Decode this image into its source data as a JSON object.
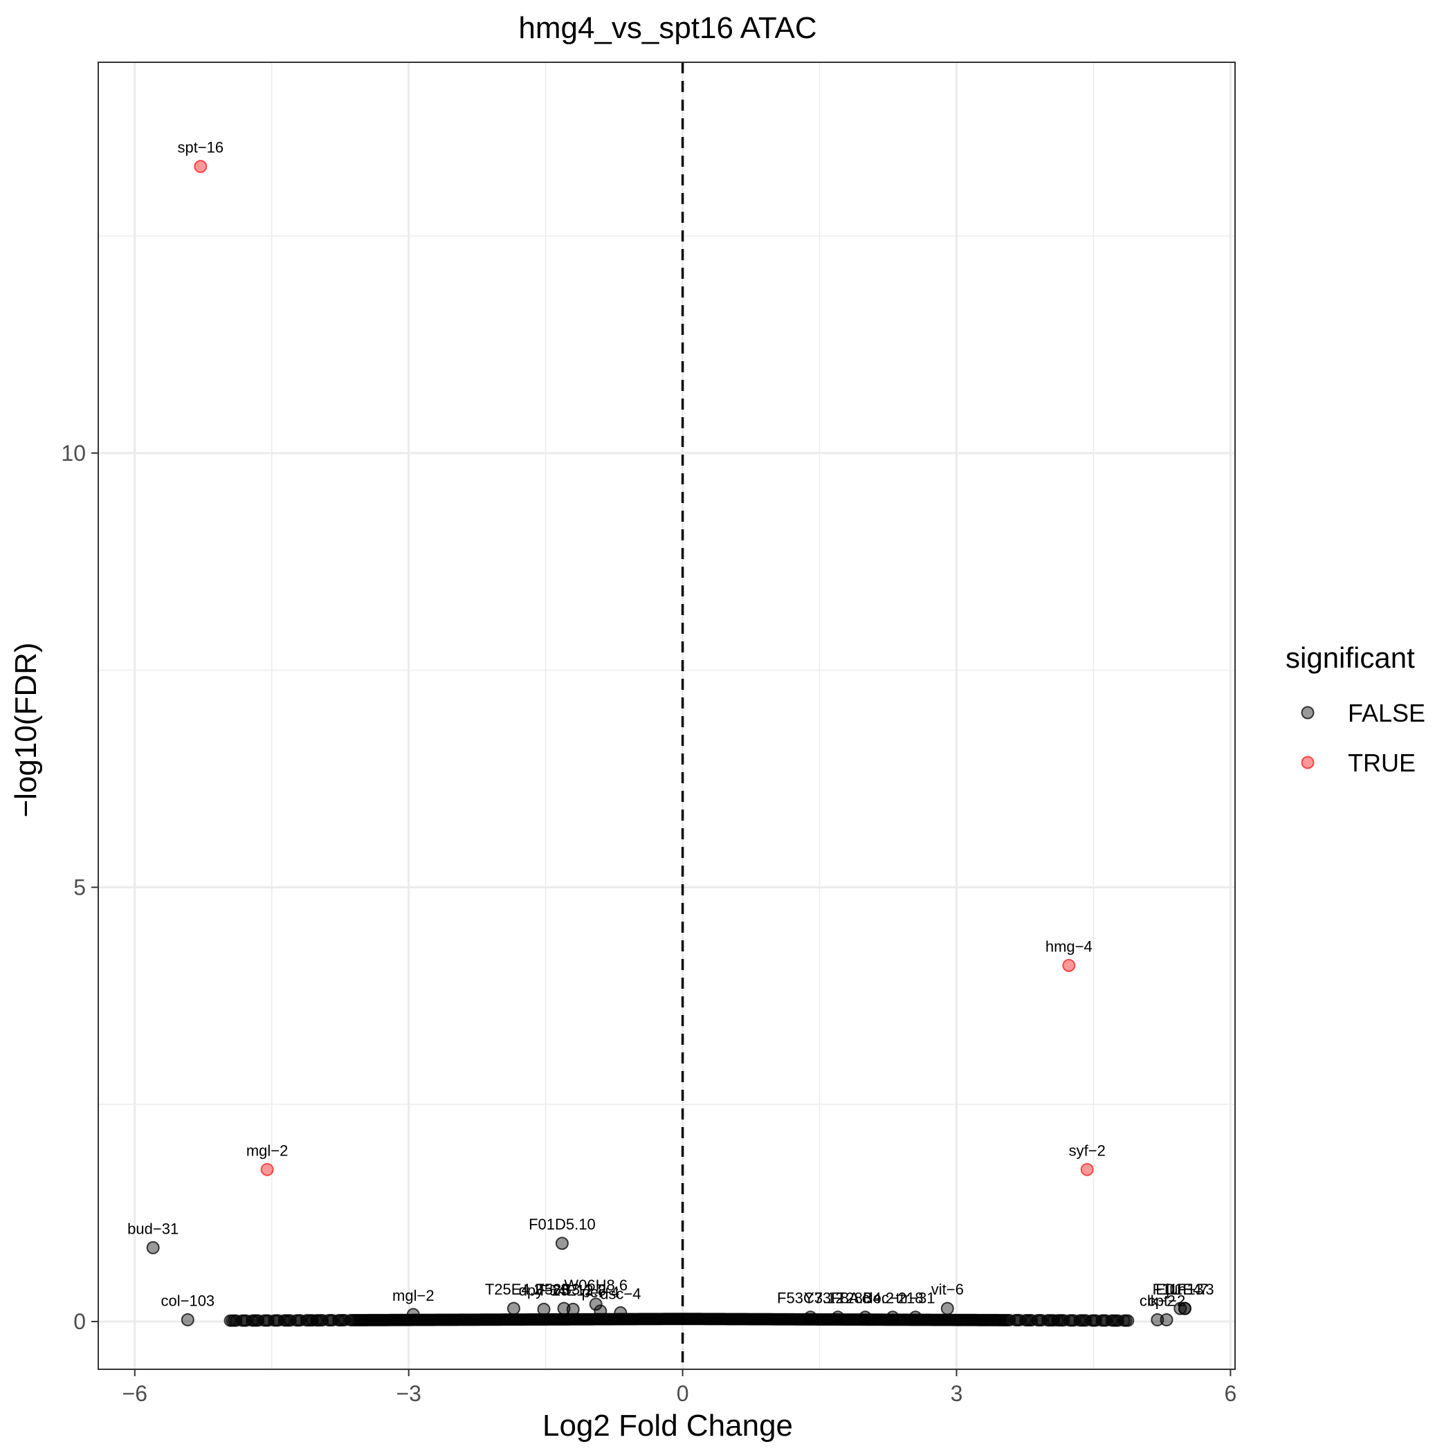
{
  "chart_data": {
    "type": "scatter",
    "title": "hmg4_vs_spt16 ATAC",
    "xlabel": "Log2 Fold Change",
    "ylabel": "−log10(FDR)",
    "xlim": [
      -6.4,
      6.05
    ],
    "ylim": [
      -0.55,
      14.5
    ],
    "x_ticks": [
      -6,
      -3,
      0,
      3,
      6
    ],
    "x_tick_labels": [
      "−6",
      "−3",
      "0",
      "3",
      "6"
    ],
    "y_ticks": [
      0,
      5,
      10
    ],
    "y_tick_labels": [
      "0",
      "5",
      "10"
    ],
    "grid": true,
    "vline": 0,
    "legend": {
      "title": "significant",
      "position": "right",
      "entries": [
        {
          "label": "FALSE",
          "color": "#000000"
        },
        {
          "label": "TRUE",
          "color": "#ff0000"
        }
      ]
    },
    "colors": {
      "FALSE": "#000000",
      "TRUE": "#ff0000"
    },
    "series": [
      {
        "name": "TRUE",
        "points": [
          {
            "x": -5.28,
            "y": 13.3,
            "label": "spt−16"
          },
          {
            "x": 4.23,
            "y": 4.1,
            "label": "hmg−4"
          },
          {
            "x": -4.55,
            "y": 1.75,
            "label": "mgl−2"
          },
          {
            "x": 4.43,
            "y": 1.75,
            "label": "syf−2"
          }
        ]
      },
      {
        "name": "FALSE",
        "points": [
          {
            "x": -5.8,
            "y": 0.85,
            "label": "bud−31"
          },
          {
            "x": -1.32,
            "y": 0.9,
            "label": "F01D5.10"
          },
          {
            "x": -5.42,
            "y": 0.02,
            "label": "col−103"
          },
          {
            "x": -2.95,
            "y": 0.08,
            "label": "mgl−2"
          },
          {
            "x": -1.85,
            "y": 0.15,
            "label": "T25E4.2"
          },
          {
            "x": -1.52,
            "y": 0.14,
            "label": "dpy−25"
          },
          {
            "x": -1.3,
            "y": 0.15,
            "label": "F58B3.1"
          },
          {
            "x": -1.2,
            "y": 0.14,
            "label": "F54E12.8"
          },
          {
            "x": -0.95,
            "y": 0.2,
            "label": "W06H8.6"
          },
          {
            "x": -0.68,
            "y": 0.1,
            "label": "dsc−4"
          },
          {
            "x": -0.9,
            "y": 0.12,
            "label": "pei−4"
          },
          {
            "x": 2.9,
            "y": 0.15,
            "label": "vit−6"
          },
          {
            "x": 1.4,
            "y": 0.05,
            "label": "F53C3.12"
          },
          {
            "x": 1.7,
            "y": 0.05,
            "label": "Y73F8A.3"
          },
          {
            "x": 2.0,
            "y": 0.05,
            "label": "T28B4.2"
          },
          {
            "x": 2.3,
            "y": 0.05,
            "label": "clec−218"
          },
          {
            "x": 2.55,
            "y": 0.05,
            "label": "ttr−31"
          },
          {
            "x": 5.2,
            "y": 0.02,
            "label": "clk−2"
          },
          {
            "x": 5.3,
            "y": 0.02,
            "label": "cpt−2"
          },
          {
            "x": 5.45,
            "y": 0.15,
            "label": "F11F1.7"
          },
          {
            "x": 5.5,
            "y": 0.15,
            "label": "jun−3"
          },
          {
            "x": 5.5,
            "y": 0.15,
            "label": "E01E4.3"
          }
        ]
      }
    ]
  }
}
